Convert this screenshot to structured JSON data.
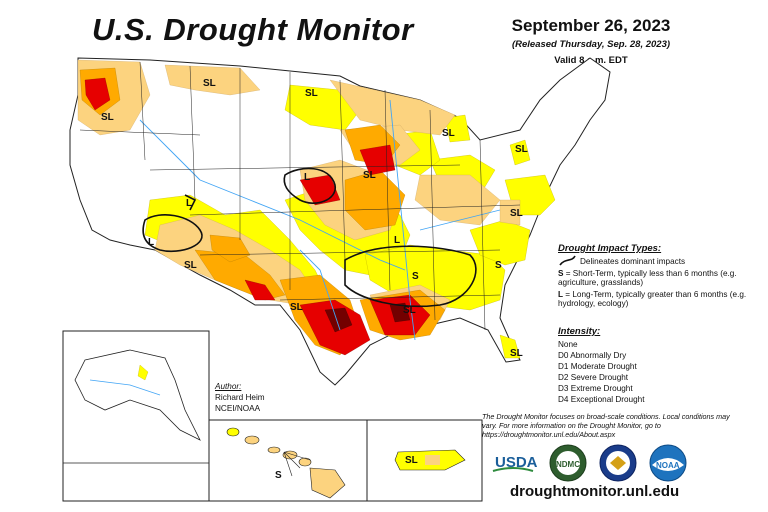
{
  "map": {
    "title": "U.S. Drought Monitor",
    "date": "September 26, 2023",
    "released": "(Released Thursday, Sep. 28, 2023)",
    "valid": "Valid 8 a.m. EDT"
  },
  "impact_types": {
    "header": "Drought Impact Types:",
    "delineates": "Delineates dominant impacts",
    "short_term_code": "S",
    "short_term": " = Short-Term, typically less than 6 months (e.g. agriculture, grasslands)",
    "long_term_code": "L",
    "long_term": " = Long-Term, typically greater than 6 months (e.g. hydrology, ecology)"
  },
  "intensity": {
    "header": "Intensity:",
    "levels": [
      {
        "label": "None",
        "color": "#ffffff"
      },
      {
        "label": "D0 Abnormally Dry",
        "color": "#ffff00"
      },
      {
        "label": "D1 Moderate Drought",
        "color": "#fcd37f"
      },
      {
        "label": "D2 Severe Drought",
        "color": "#ffaa00"
      },
      {
        "label": "D3 Extreme Drought",
        "color": "#e60000"
      },
      {
        "label": "D4 Exceptional Drought",
        "color": "#730000"
      }
    ]
  },
  "author": {
    "header": "Author:",
    "name": "Richard Heim",
    "org": "NCEI/NOAA"
  },
  "disclaimer": "The Drought Monitor focuses on broad-scale conditions. Local conditions may vary. For more information on the Drought Monitor, go to https://droughtmonitor.unl.edu/About.aspx",
  "logos": {
    "usda": "USDA",
    "ndmc": "NDMC",
    "noaa": "NOAA"
  },
  "url": "droughtmonitor.unl.edu",
  "map_labels": {
    "sl": "SL",
    "s": "S",
    "l": "L"
  },
  "colors": {
    "water": "#42a5f5",
    "border": "#222222"
  }
}
